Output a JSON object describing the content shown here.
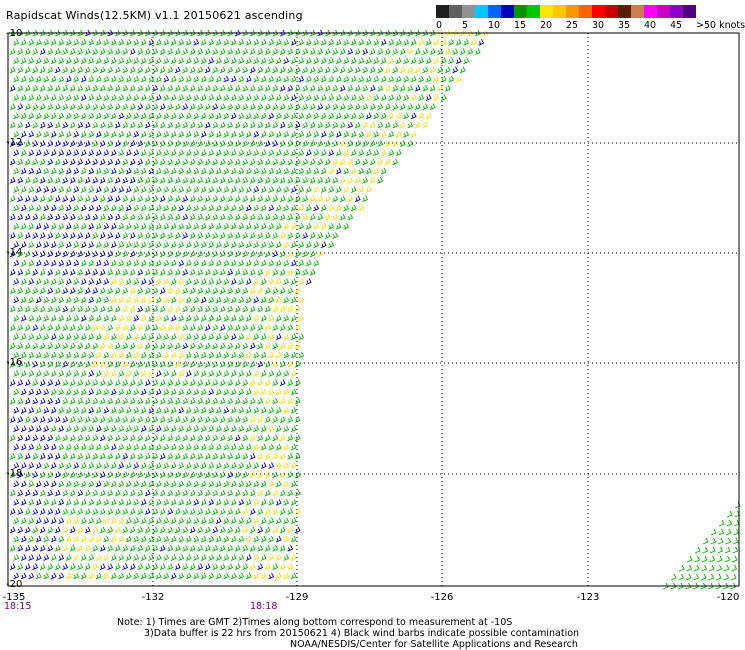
{
  "title": "Rapidscat Winds(12.5KM) v1.1 20150621 ascending",
  "legend": {
    "colors": [
      "#202020",
      "#606060",
      "#909090",
      "#00c8ff",
      "#0064ff",
      "#0000c0",
      "#009600",
      "#00c800",
      "#ffe600",
      "#ffc800",
      "#ff9600",
      "#ff6400",
      "#ff0000",
      "#c80000",
      "#5a1e00",
      "#c88050",
      "#ff00ff",
      "#c800c8",
      "#8c00c8",
      "#500080"
    ],
    "labels": [
      "0",
      "5",
      "10",
      "15",
      "20",
      "25",
      "30",
      "35",
      "40",
      "45",
      ">50 knots"
    ],
    "barb_colors": {
      "green": "#00b400",
      "blue": "#0000c8",
      "yellow": "#ffdc00",
      "red": "#e10000"
    }
  },
  "map": {
    "lon_ticks": [
      "-135",
      "-132",
      "-129",
      "-126",
      "-123",
      "-120"
    ],
    "lat_ticks": [
      "-10",
      "-12",
      "-14",
      "-16",
      "-18",
      "-20"
    ]
  },
  "timestamps": [
    "18:15",
    "18:18"
  ],
  "notes": [
    "Note: 1) Times are GMT 2)Times along bottom correspond to measurement at -10S",
    "3)Data buffer is 22 hrs from 20150621 4) Black wind barbs indicate possible contamination",
    "NOAA/NESDIS/Center for Satellite Applications and Research"
  ]
}
